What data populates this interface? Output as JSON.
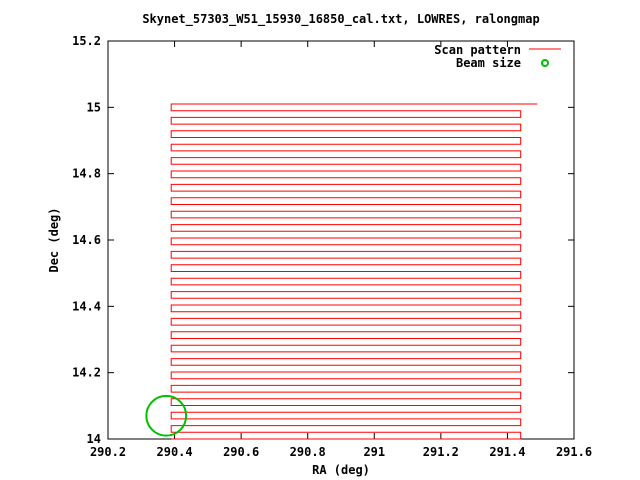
{
  "chart_data": {
    "type": "line",
    "title": "Skynet_57303_W51_15930_16850_cal.txt, LOWRES, ralongmap",
    "xlabel": "RA (deg)",
    "ylabel": "Dec (deg)",
    "xlim": [
      290.2,
      291.6
    ],
    "ylim": [
      14.0,
      15.2
    ],
    "x_ticks": [
      "290.2",
      "290.4",
      "290.6",
      "290.8",
      "291",
      "291.2",
      "291.4",
      "291.6"
    ],
    "y_ticks": [
      "14",
      "14.2",
      "14.4",
      "14.6",
      "14.8",
      "15",
      "15.2"
    ],
    "grid": false,
    "legend_position": "top-right",
    "series": [
      {
        "name": "Scan pattern",
        "color": "#ff0000",
        "ra_start": 290.39,
        "ra_end": 291.44,
        "dec_start": 14.0,
        "dec_end": 15.01,
        "row_count": 51,
        "final_ra": 291.49
      },
      {
        "name": "Beam size",
        "color": "#00c000",
        "center_ra": 290.375,
        "center_dec": 14.07,
        "diameter_deg": 0.12
      }
    ]
  }
}
